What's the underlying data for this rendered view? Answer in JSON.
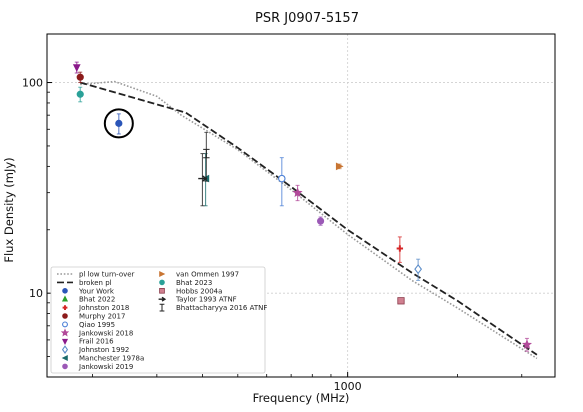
{
  "chart_data": {
    "type": "scatter",
    "title": "PSR J0907-5157",
    "xlabel": "Frequency (MHz)",
    "ylabel": "Flux Density (mJy)",
    "x_scale": "log",
    "y_scale": "log",
    "xlim": [
      150,
      3700
    ],
    "ylim": [
      4,
      170
    ],
    "x_tick_labels": [
      {
        "value": 1000,
        "label": "1000"
      }
    ],
    "y_tick_labels": [
      {
        "value": 10,
        "label": "10"
      },
      {
        "value": 100,
        "label": "100"
      }
    ],
    "grid": "dotted",
    "legend_position": "lower-left",
    "fit_lines": [
      {
        "name": "pl low turn-over",
        "style": "dotted",
        "color": "#999999",
        "points": [
          [
            185,
            98
          ],
          [
            230,
            101
          ],
          [
            300,
            86
          ],
          [
            350,
            70
          ],
          [
            500,
            48
          ],
          [
            700,
            31
          ],
          [
            1000,
            19
          ],
          [
            1500,
            11.5
          ],
          [
            2000,
            8.5
          ],
          [
            3300,
            4.9
          ]
        ]
      },
      {
        "name": "broken pl",
        "style": "dashed",
        "color": "#222222",
        "points": [
          [
            185,
            100
          ],
          [
            360,
            72
          ],
          [
            500,
            49
          ],
          [
            700,
            32
          ],
          [
            1000,
            20
          ],
          [
            1500,
            12.5
          ],
          [
            2000,
            9.2
          ],
          [
            3300,
            5.1
          ]
        ]
      }
    ],
    "series": [
      {
        "name": "Your Work",
        "marker": "circle",
        "color": "#2a55b8",
        "points": [
          {
            "x": 236,
            "y": 64,
            "err": [
              57,
              71
            ]
          }
        ]
      },
      {
        "name": "Bhat 2022",
        "marker": "triangle-up",
        "color": "#2ca02c",
        "points": []
      },
      {
        "name": "Johnston 2018",
        "marker": "plus",
        "color": "#d62728",
        "points": [
          {
            "x": 1390,
            "y": 16.3,
            "err": [
              14,
              18.5
            ]
          }
        ]
      },
      {
        "name": "Murphy 2017",
        "marker": "circle",
        "color": "#8c1b1b",
        "points": [
          {
            "x": 185,
            "y": 106,
            "err": [
              100,
              112
            ]
          }
        ]
      },
      {
        "name": "Qiao 1995",
        "marker": "circle-open",
        "color": "#4a7fd6",
        "points": [
          {
            "x": 660,
            "y": 35,
            "err": [
              26,
              44
            ]
          }
        ]
      },
      {
        "name": "Jankowski 2018",
        "marker": "star",
        "color": "#b24a9a",
        "points": [
          {
            "x": 729,
            "y": 30,
            "err": [
              27.5,
              32.5
            ]
          },
          {
            "x": 3100,
            "y": 5.7,
            "err": [
              5.3,
              6.1
            ]
          }
        ]
      },
      {
        "name": "Frail 2016",
        "marker": "triangle-down",
        "color": "#8b1a8b",
        "points": [
          {
            "x": 181,
            "y": 118,
            "err": [
              111,
              125
            ]
          }
        ]
      },
      {
        "name": "Johnston 1992",
        "marker": "diamond-open",
        "color": "#5b8cc8",
        "points": [
          {
            "x": 1560,
            "y": 13,
            "err": [
              11.5,
              14.5
            ]
          }
        ]
      },
      {
        "name": "Manchester 1978a",
        "marker": "triangle-left",
        "color": "#1a6b6b",
        "points": [
          {
            "x": 408,
            "y": 35,
            "err": [
              26,
              46
            ]
          }
        ]
      },
      {
        "name": "Jankowski 2019",
        "marker": "circle",
        "color": "#9b59b6",
        "points": [
          {
            "x": 843,
            "y": 22,
            "err": [
              21,
              23
            ]
          }
        ]
      },
      {
        "name": "van Ommen 1997",
        "marker": "triangle-right",
        "color": "#c87533",
        "points": [
          {
            "x": 950,
            "y": 40,
            "err": [
              39,
              41
            ]
          }
        ]
      },
      {
        "name": "Bhat 2023",
        "marker": "circle",
        "color": "#2aa198",
        "points": [
          {
            "x": 185,
            "y": 88,
            "err": [
              81,
              95
            ]
          }
        ]
      },
      {
        "name": "Hobbs 2004a",
        "marker": "square",
        "color": "#d08090",
        "points": [
          {
            "x": 1400,
            "y": 9.2,
            "err": [
              9.0,
              9.4
            ]
          }
        ]
      },
      {
        "name": "Taylor 1993 ATNF",
        "marker": "arrow-right",
        "color": "#222222",
        "points": [
          {
            "x": 400,
            "y": 35,
            "err": [
              26,
              46
            ]
          }
        ]
      },
      {
        "name": "Bhattacharyya 2016 ATNF",
        "marker": "err-cap",
        "color": "#222222",
        "points": [
          {
            "x": 410,
            "y": 46,
            "err": [
              34,
              58
            ]
          }
        ]
      }
    ],
    "annotations": [
      {
        "type": "circle-highlight",
        "x": 236,
        "y": 64
      }
    ]
  }
}
